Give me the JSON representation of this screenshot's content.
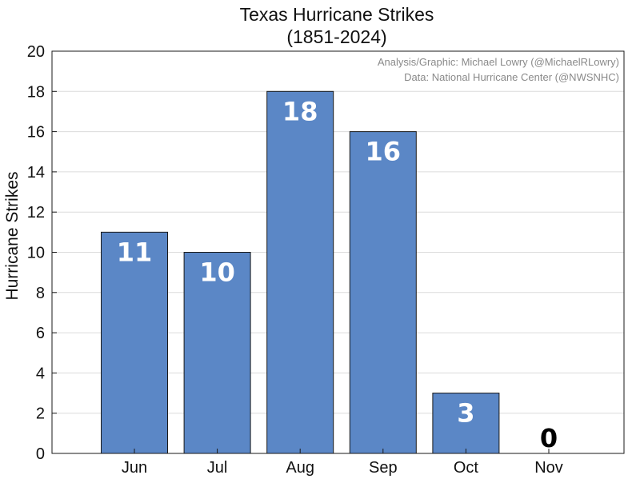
{
  "chart_data": {
    "type": "bar",
    "title": "Texas Hurricane Strikes",
    "subtitle": "(1851-2024)",
    "xlabel": "",
    "ylabel": "Hurricane Strikes",
    "categories": [
      "Jun",
      "Jul",
      "Aug",
      "Sep",
      "Oct",
      "Nov"
    ],
    "values": [
      11,
      10,
      18,
      16,
      3,
      0
    ],
    "data_labels": [
      "11",
      "10",
      "18",
      "16",
      "3",
      "0"
    ],
    "ylim": [
      0,
      20
    ],
    "yticks": [
      0,
      2,
      4,
      6,
      8,
      10,
      12,
      14,
      16,
      18,
      20
    ],
    "grid": true,
    "legend": "none",
    "annotations": [
      "Analysis/Graphic: Michael Lowry (@MichaelRLowry)",
      "Data: National Hurricane Center (@NWSNHC)"
    ],
    "colors": {
      "bar": "#5b87c6",
      "bar_edge": "#1a1a1a",
      "label_inside": "#ffffff",
      "label_outside": "#000000",
      "grid": "#dcdcdc",
      "credit": "#8a8a8a"
    }
  }
}
